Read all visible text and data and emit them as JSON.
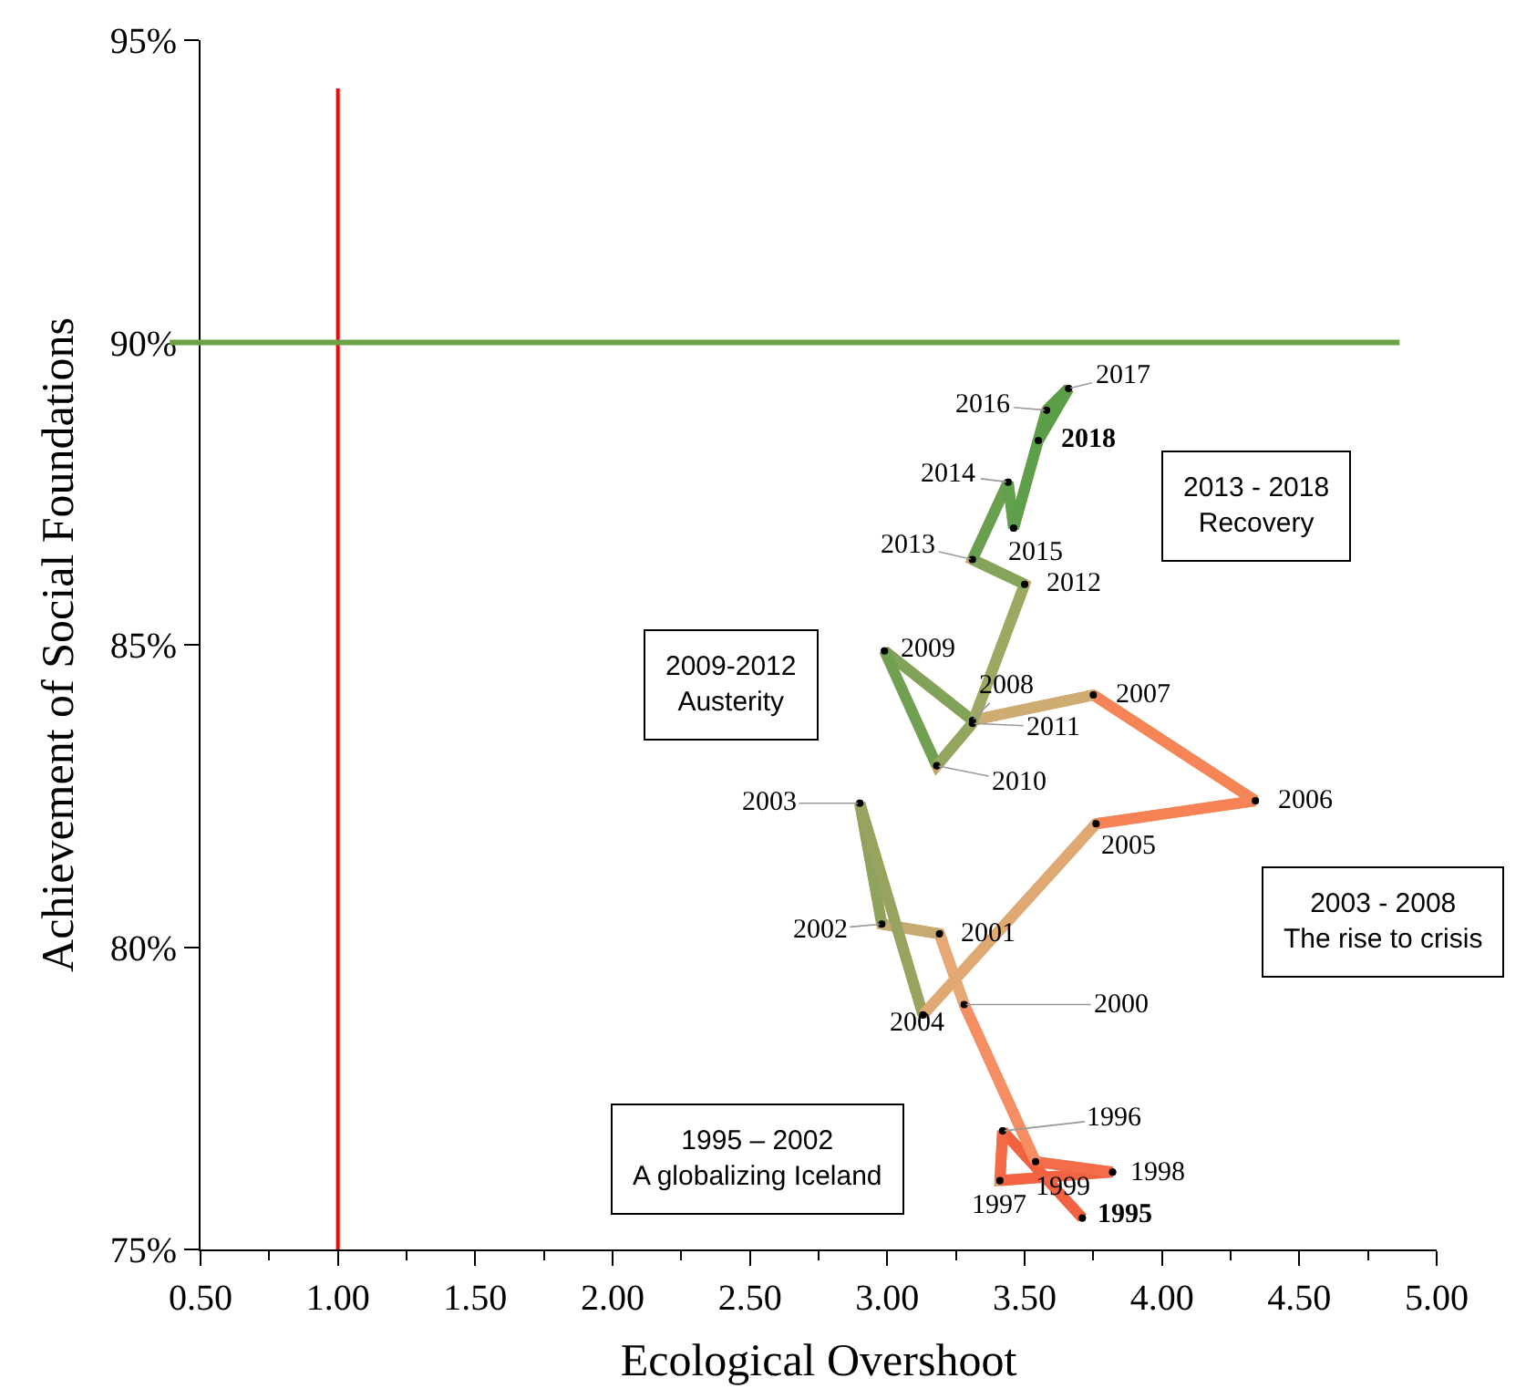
{
  "chart_data": {
    "type": "line",
    "xlabel": "Ecological Overshoot",
    "ylabel": "Achievement of Social Foundations",
    "xlim": [
      0.5,
      5.0
    ],
    "xticks": [
      {
        "value": 0.5,
        "label": "0.50"
      },
      {
        "value": 1.0,
        "label": "1.00"
      },
      {
        "value": 1.5,
        "label": "1.50"
      },
      {
        "value": 2.0,
        "label": "2.00"
      },
      {
        "value": 2.5,
        "label": "2.50"
      },
      {
        "value": 3.0,
        "label": "3.00"
      },
      {
        "value": 3.5,
        "label": "3.50"
      },
      {
        "value": 4.0,
        "label": "4.00"
      },
      {
        "value": 4.5,
        "label": "4.50"
      },
      {
        "value": 5.0,
        "label": "5.00"
      }
    ],
    "ylim": [
      75,
      95
    ],
    "yticks": [
      {
        "value": 75,
        "label": "75%"
      },
      {
        "value": 80,
        "label": "80%"
      },
      {
        "value": 85,
        "label": "85%"
      },
      {
        "value": 90,
        "label": "90%"
      },
      {
        "value": 95,
        "label": "95%"
      }
    ],
    "marker": "circle",
    "series": [
      {
        "x": [
          3.71,
          3.42,
          3.41,
          3.82,
          3.54,
          3.28,
          3.19,
          2.98,
          2.9,
          3.13,
          3.76,
          4.34,
          3.75,
          3.31,
          2.99,
          3.18,
          3.31,
          3.5,
          3.31,
          3.44,
          3.46,
          3.58,
          3.66,
          3.55
        ],
        "values": [
          75.52,
          76.96,
          76.14,
          76.28,
          76.45,
          79.05,
          80.22,
          80.38,
          82.38,
          78.88,
          82.04,
          82.42,
          84.17,
          83.75,
          84.9,
          83.0,
          83.7,
          86.0,
          86.41,
          87.69,
          86.93,
          88.88,
          89.24,
          88.38
        ],
        "color": "#c8a06a",
        "colors": [
          "#f25a38",
          "#f46b48",
          "#f56845",
          "#f46040",
          "#f57a55",
          "#f9a372",
          "#d6ae78",
          "#b4a96c",
          "#6a9e50",
          "#c6a86e",
          "#fbab78",
          "#f25a35",
          "#f9b07a",
          "#a6a868",
          "#5a9e4a",
          "#86a45a",
          "#a0a865",
          "#98aa60",
          "#70a055",
          "#62a04c",
          "#62a04e",
          "#5a9e48",
          "#5a9e48",
          "#5a9e48"
        ]
      }
    ],
    "ref_lines": [
      {
        "axis": "x",
        "value": 1.0,
        "color": "#ff0000"
      },
      {
        "axis": "y",
        "value": 90,
        "color": "#6aa245"
      }
    ],
    "annotations": [
      "2013 - 2018\nRecovery",
      "2009-2012\nAusterity",
      "2003 - 2008\nThe rise to crisis",
      "1995 – 2002\nA globalizing Iceland",
      {
        "text": "1995",
        "x": 3.71,
        "y": 75.52
      },
      {
        "text": "1996",
        "x": 3.42,
        "y": 76.96
      },
      {
        "text": "1997",
        "x": 3.41,
        "y": 76.14
      },
      {
        "text": "1998",
        "x": 3.82,
        "y": 76.28
      },
      {
        "text": "1999",
        "x": 3.54,
        "y": 76.45
      },
      {
        "text": "2000",
        "x": 3.28,
        "y": 79.05
      },
      {
        "text": "2001",
        "x": 3.19,
        "y": 80.22
      },
      {
        "text": "2002",
        "x": 2.98,
        "y": 80.38
      },
      {
        "text": "2003",
        "x": 2.9,
        "y": 82.38
      },
      {
        "text": "2004",
        "x": 3.13,
        "y": 78.88
      },
      {
        "text": "2005",
        "x": 3.76,
        "y": 82.04
      },
      {
        "text": "2006",
        "x": 4.34,
        "y": 82.42
      },
      {
        "text": "2007",
        "x": 3.75,
        "y": 84.17
      },
      {
        "text": "2008",
        "x": 3.31,
        "y": 83.75
      },
      {
        "text": "2009",
        "x": 2.99,
        "y": 84.9
      },
      {
        "text": "2010",
        "x": 3.18,
        "y": 83.0
      },
      {
        "text": "2011",
        "x": 3.31,
        "y": 83.7
      },
      {
        "text": "2012",
        "x": 3.5,
        "y": 86.0
      },
      {
        "text": "2013",
        "x": 3.31,
        "y": 86.41
      },
      {
        "text": "2014",
        "x": 3.44,
        "y": 87.69
      },
      {
        "text": "2015",
        "x": 3.46,
        "y": 86.93
      },
      {
        "text": "2016",
        "x": 3.58,
        "y": 88.88
      },
      {
        "text": "2017",
        "x": 3.66,
        "y": 89.24
      },
      {
        "text": "2018",
        "x": 3.55,
        "y": 88.38
      }
    ]
  }
}
